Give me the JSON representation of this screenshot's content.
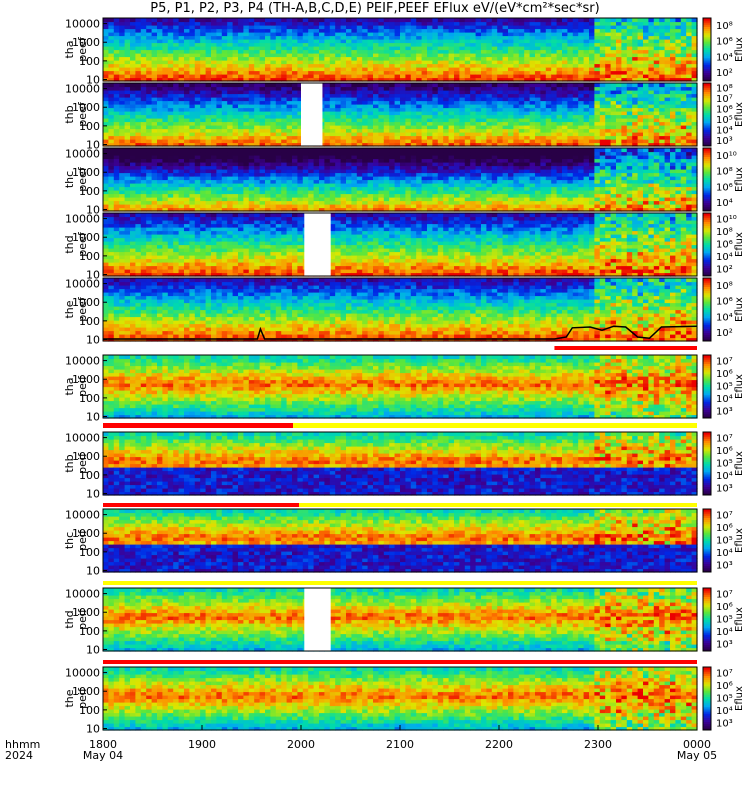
{
  "title": "P5, P1, P2, P3, P4 (TH-A,B,C,D,E) PEIF,PEEF EFlux eV/(eV*cm²*sec*sr)",
  "chart_data": {
    "type": "heatmap",
    "colorbar_label": "Eflux",
    "x_axis": {
      "ticks": [
        "1800",
        "1900",
        "2000",
        "2100",
        "2200",
        "2300",
        "0000"
      ],
      "sub_labels": [
        "May 04",
        "",
        "",
        "",
        "",
        "",
        "May 05"
      ],
      "row_labels": [
        "hhmm",
        "2024"
      ]
    },
    "panels": [
      {
        "probe": "tha",
        "species": "peef",
        "yticks": [
          "10",
          "100",
          "1000",
          "10000"
        ],
        "cbar_ticks": [
          "10²",
          "10⁴",
          "10⁶",
          "10⁸"
        ],
        "data_gaps": []
      },
      {
        "probe": "thb",
        "species": "peef",
        "yticks": [
          "10",
          "100",
          "1000",
          "10000"
        ],
        "cbar_ticks": [
          "10³",
          "10⁴",
          "10⁵",
          "10⁶",
          "10⁷",
          "10⁸"
        ],
        "data_gaps": [
          [
            "2000",
            "2013"
          ]
        ]
      },
      {
        "probe": "thc",
        "species": "peef",
        "yticks": [
          "10",
          "100",
          "1000",
          "10000"
        ],
        "cbar_ticks": [
          "10⁴",
          "10⁶",
          "10⁸",
          "10¹⁰"
        ],
        "data_gaps": []
      },
      {
        "probe": "thd",
        "species": "peef",
        "yticks": [
          "10",
          "100",
          "1000",
          "10000"
        ],
        "cbar_ticks": [
          "10²",
          "10⁴",
          "10⁶",
          "10⁸",
          "10¹⁰"
        ],
        "data_gaps": [
          [
            "2002",
            "2018"
          ]
        ]
      },
      {
        "probe": "the",
        "species": "peef",
        "yticks": [
          "10",
          "100",
          "1000",
          "10000"
        ],
        "cbar_ticks": [
          "10²",
          "10⁴",
          "10⁶",
          "10⁸"
        ],
        "data_gaps": []
      },
      {
        "probe": "tha",
        "species": "peif",
        "yticks": [
          "10",
          "100",
          "1000",
          "10000"
        ],
        "cbar_ticks": [
          "10³",
          "10⁴",
          "10⁵",
          "10⁶",
          "10⁷"
        ],
        "data_gaps": []
      },
      {
        "probe": "thb",
        "species": "peif",
        "yticks": [
          "10",
          "100",
          "1000",
          "10000"
        ],
        "cbar_ticks": [
          "10³",
          "10⁴",
          "10⁵",
          "10⁶",
          "10⁷"
        ],
        "data_gaps": []
      },
      {
        "probe": "thc",
        "species": "peif",
        "yticks": [
          "10",
          "100",
          "1000",
          "10000"
        ],
        "cbar_ticks": [
          "10³",
          "10⁴",
          "10⁵",
          "10⁶",
          "10⁷"
        ],
        "data_gaps": []
      },
      {
        "probe": "thd",
        "species": "peif",
        "yticks": [
          "10",
          "100",
          "1000",
          "10000"
        ],
        "cbar_ticks": [
          "10³",
          "10⁴",
          "10⁵",
          "10⁶",
          "10⁷"
        ],
        "data_gaps": [
          [
            "2002",
            "2018"
          ]
        ]
      },
      {
        "probe": "the",
        "species": "peif",
        "yticks": [
          "10",
          "100",
          "1000",
          "10000"
        ],
        "cbar_ticks": [
          "10³",
          "10⁴",
          "10⁵",
          "10⁶",
          "10⁷"
        ],
        "data_gaps": []
      }
    ],
    "colors": {
      "bar_red": "#ff0000",
      "bar_yellow": "#ffff00",
      "line_black": "#000000"
    }
  }
}
